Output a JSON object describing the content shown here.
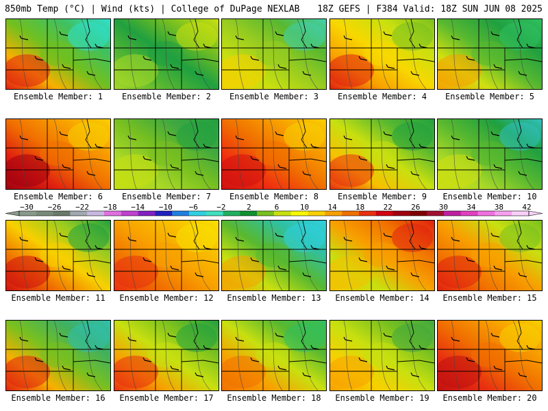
{
  "header": {
    "left": "850mb Temp (°C) | Wind (kts) | College of DuPage NEXLAB",
    "right": "18Z GEFS | F384 Valid: 18Z SUN JUN 08 2025"
  },
  "colorbar": {
    "labels": [
      "−30",
      "−26",
      "−22",
      "−18",
      "−14",
      "−10",
      "−6",
      "−2",
      "2",
      "6",
      "10",
      "14",
      "18",
      "22",
      "26",
      "30",
      "34",
      "38",
      "42"
    ],
    "colors": [
      "#8a9a8a",
      "#7a8a7a",
      "#6a7a6a",
      "#a0a8b0",
      "#c8b8e0",
      "#e070e0",
      "#c040d0",
      "#8020c0",
      "#2020c0",
      "#2080e0",
      "#30d0e0",
      "#40e0c0",
      "#20b060",
      "#109030",
      "#78c020",
      "#c8e010",
      "#f8f800",
      "#f8d000",
      "#f8a000",
      "#f07000",
      "#e83010",
      "#d00010",
      "#a00010",
      "#800000",
      "#a01030",
      "#c020a0",
      "#e040c0",
      "#f070e0",
      "#f8a0f0",
      "#f8d0f8"
    ]
  },
  "panels": [
    {
      "label": "Ensemble Member: 1",
      "colors": [
        "#e02010",
        "#f8b000",
        "#70c020",
        "#40c060",
        "#30e0d0"
      ]
    },
    {
      "label": "Ensemble Member: 2",
      "colors": [
        "#a8d828",
        "#58b830",
        "#20a040",
        "#78c020",
        "#c8e010"
      ]
    },
    {
      "label": "Ensemble Member: 3",
      "colors": [
        "#f8d000",
        "#c8e010",
        "#98cc20",
        "#58b830",
        "#40d0b0"
      ]
    },
    {
      "label": "Ensemble Member: 4",
      "colors": [
        "#e02010",
        "#f8a000",
        "#f8d800",
        "#c8e010",
        "#78c020"
      ]
    },
    {
      "label": "Ensemble Member: 5",
      "colors": [
        "#f8a000",
        "#d0e010",
        "#58b830",
        "#20a040",
        "#30c060"
      ]
    },
    {
      "label": "Ensemble Member: 6",
      "colors": [
        "#a00010",
        "#e02010",
        "#f07000",
        "#f8a000",
        "#f8d000"
      ]
    },
    {
      "label": "Ensemble Member: 7",
      "colors": [
        "#c8e010",
        "#a8d828",
        "#78c020",
        "#40a840",
        "#20a040"
      ]
    },
    {
      "label": "Ensemble Member: 8",
      "colors": [
        "#d01010",
        "#f03010",
        "#f07000",
        "#f8a000",
        "#f8d000"
      ]
    },
    {
      "label": "Ensemble Member: 9",
      "colors": [
        "#e83010",
        "#f8c000",
        "#c8e010",
        "#58b830",
        "#20a040"
      ]
    },
    {
      "label": "Ensemble Member: 10",
      "colors": [
        "#d0e010",
        "#a8d828",
        "#58b830",
        "#20a040",
        "#30c0c0"
      ]
    },
    {
      "label": "Ensemble Member: 11",
      "colors": [
        "#d01010",
        "#f07000",
        "#f8d000",
        "#98cc20",
        "#20a040"
      ]
    },
    {
      "label": "Ensemble Member: 12",
      "colors": [
        "#e83010",
        "#f07000",
        "#f8a000",
        "#f8c000",
        "#f8e000"
      ]
    },
    {
      "label": "Ensemble Member: 13",
      "colors": [
        "#f8a000",
        "#c8e010",
        "#58b830",
        "#30c0a0",
        "#30d0e0"
      ]
    },
    {
      "label": "Ensemble Member: 14",
      "colors": [
        "#f8c000",
        "#c8e010",
        "#f8a000",
        "#f07000",
        "#e02010"
      ]
    },
    {
      "label": "Ensemble Member: 15",
      "colors": [
        "#e02010",
        "#f07000",
        "#f8a000",
        "#c8e010",
        "#78c020"
      ]
    },
    {
      "label": "Ensemble Member: 16",
      "colors": [
        "#e02010",
        "#f8b000",
        "#78c020",
        "#40b060",
        "#30c0b0"
      ]
    },
    {
      "label": "Ensemble Member: 17",
      "colors": [
        "#e83010",
        "#f8a000",
        "#c8e010",
        "#78c020",
        "#20a040"
      ]
    },
    {
      "label": "Ensemble Member: 18",
      "colors": [
        "#f07000",
        "#f8a000",
        "#c8e010",
        "#58b830",
        "#30c060"
      ]
    },
    {
      "label": "Ensemble Member: 19",
      "colors": [
        "#f8a000",
        "#f8d000",
        "#c8e010",
        "#78c020",
        "#40a840"
      ]
    },
    {
      "label": "Ensemble Member: 20",
      "colors": [
        "#c01010",
        "#e83010",
        "#f07000",
        "#f8a000",
        "#f8d000"
      ]
    }
  ]
}
